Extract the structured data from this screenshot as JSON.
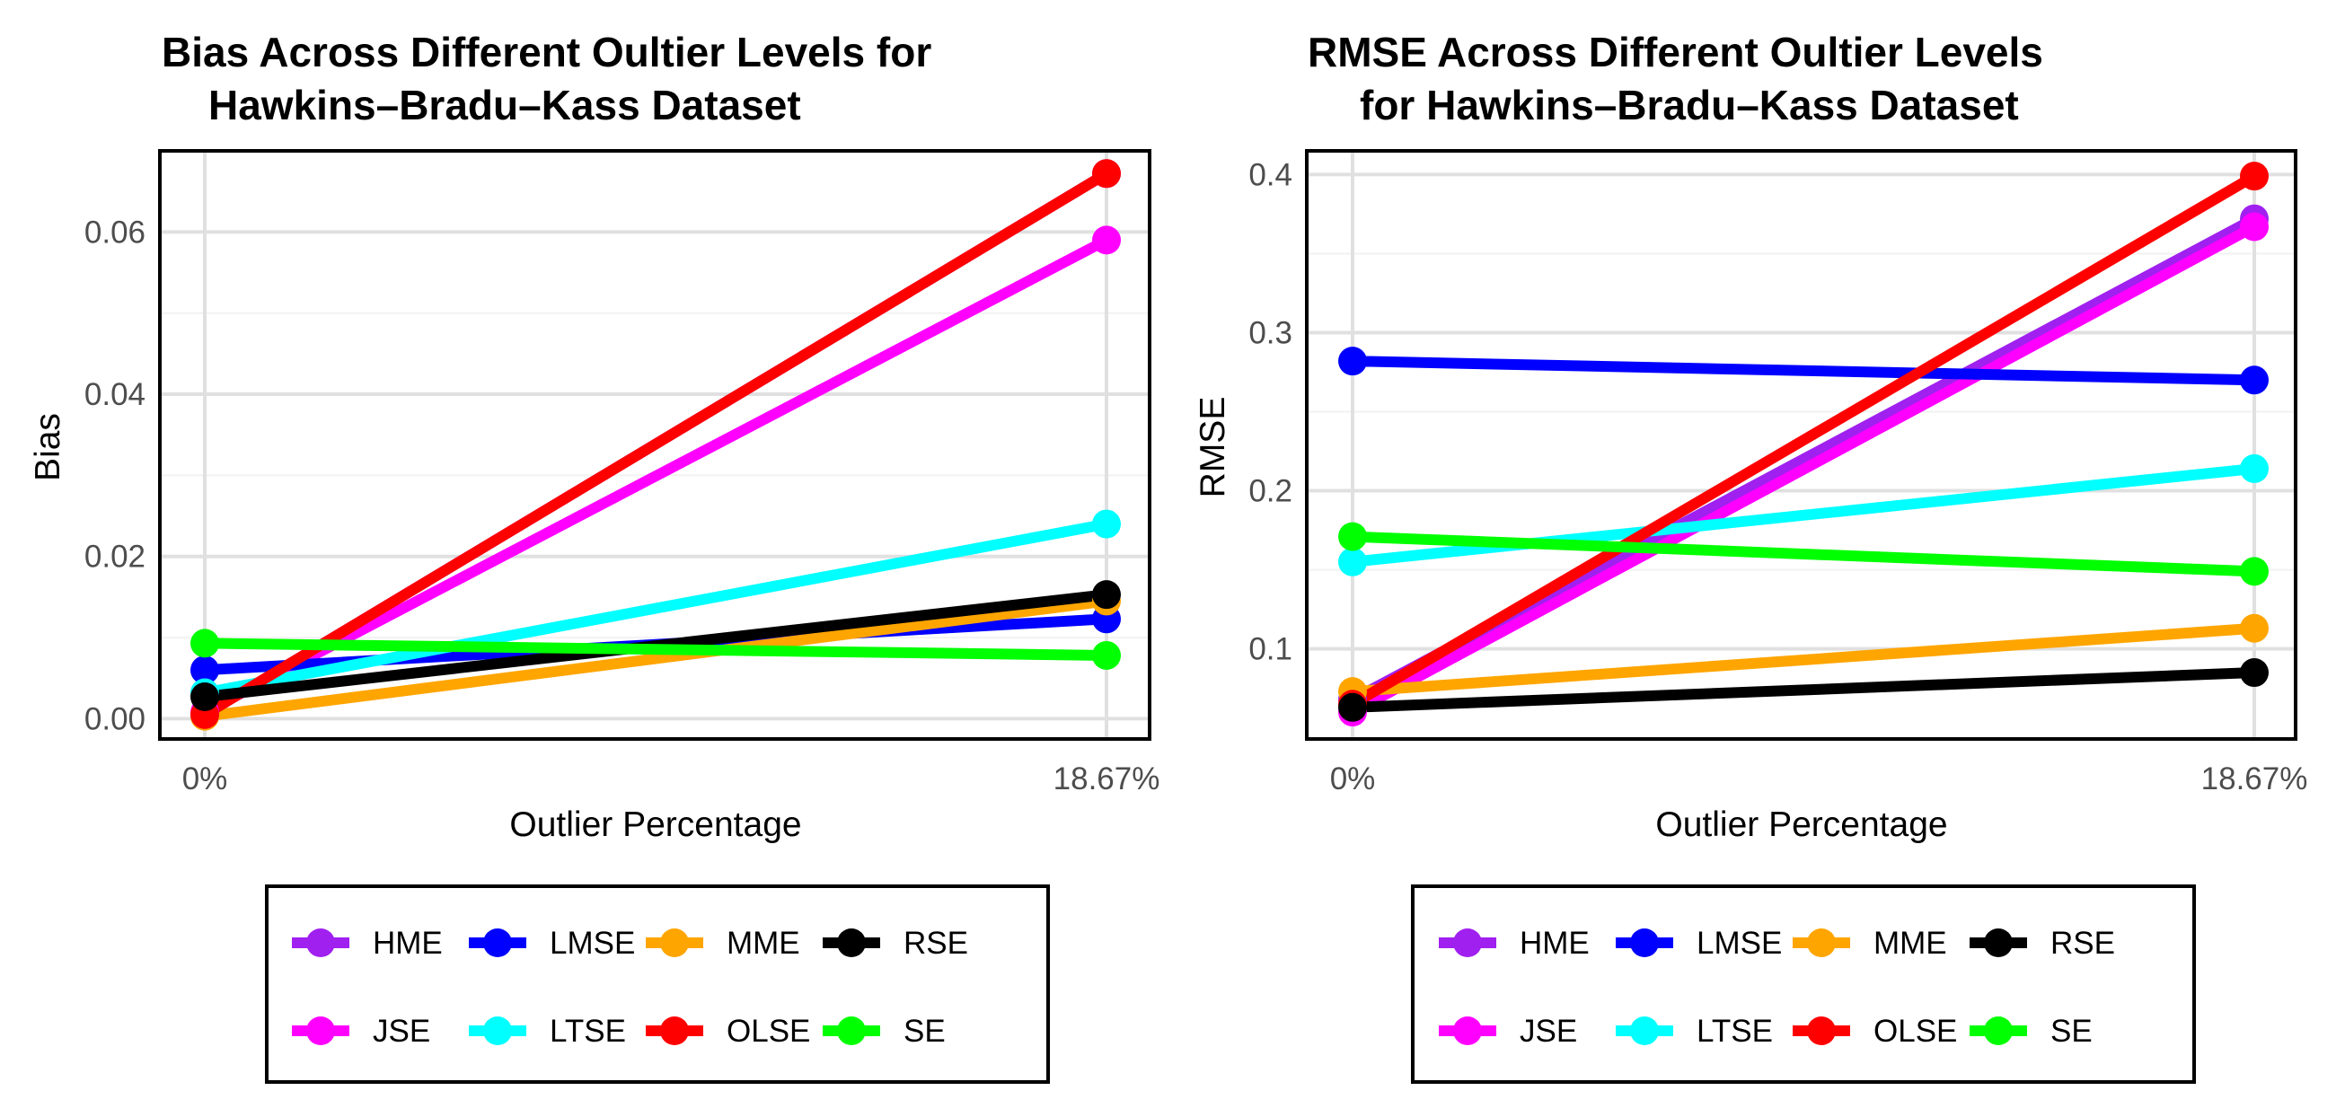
{
  "chart_data": [
    {
      "type": "line",
      "title_line1": "Bias Across Different Oultier Levels for",
      "title_line2": "Hawkins–Bradu–Kass Dataset",
      "xlabel": "Outlier Percentage",
      "ylabel": "Bias",
      "categories": [
        "0%",
        "18.67%"
      ],
      "ylim": [
        -0.0025,
        0.07
      ],
      "yticks": [
        0.0,
        0.02,
        0.04,
        0.06
      ],
      "ytick_labels": [
        "0.00",
        "0.02",
        "0.04",
        "0.06"
      ],
      "grid": true,
      "legend_position": "bottom",
      "series": [
        {
          "name": "HME",
          "color": "#a020f0",
          "values": [
            0.0005,
            0.0672
          ]
        },
        {
          "name": "JSE",
          "color": "#ff00ff",
          "values": [
            0.0008,
            0.059
          ]
        },
        {
          "name": "LMSE",
          "color": "#0000ff",
          "values": [
            0.006,
            0.0123
          ]
        },
        {
          "name": "LTSE",
          "color": "#00ffff",
          "values": [
            0.0032,
            0.024
          ]
        },
        {
          "name": "MME",
          "color": "#ffa500",
          "values": [
            0.0003,
            0.0145
          ]
        },
        {
          "name": "OLSE",
          "color": "#ff0000",
          "values": [
            0.0005,
            0.0672
          ]
        },
        {
          "name": "RSE",
          "color": "#000000",
          "values": [
            0.0027,
            0.0153
          ]
        },
        {
          "name": "SE",
          "color": "#00ff00",
          "values": [
            0.0093,
            0.0078
          ]
        }
      ]
    },
    {
      "type": "line",
      "title_line1": "RMSE Across Different Oultier Levels",
      "title_line2": "for Hawkins–Bradu–Kass Dataset",
      "xlabel": "Outlier Percentage",
      "ylabel": "RMSE",
      "categories": [
        "0%",
        "18.67%"
      ],
      "ylim": [
        0.043,
        0.415
      ],
      "yticks": [
        0.1,
        0.2,
        0.3,
        0.4
      ],
      "ytick_labels": [
        "0.1",
        "0.2",
        "0.3",
        "0.4"
      ],
      "grid": true,
      "legend_position": "bottom",
      "series": [
        {
          "name": "HME",
          "color": "#a020f0",
          "values": [
            0.068,
            0.372
          ]
        },
        {
          "name": "JSE",
          "color": "#ff00ff",
          "values": [
            0.06,
            0.367
          ]
        },
        {
          "name": "LMSE",
          "color": "#0000ff",
          "values": [
            0.282,
            0.27
          ]
        },
        {
          "name": "LTSE",
          "color": "#00ffff",
          "values": [
            0.155,
            0.214
          ]
        },
        {
          "name": "MME",
          "color": "#ffa500",
          "values": [
            0.073,
            0.113
          ]
        },
        {
          "name": "OLSE",
          "color": "#ff0000",
          "values": [
            0.065,
            0.399
          ]
        },
        {
          "name": "RSE",
          "color": "#000000",
          "values": [
            0.063,
            0.085
          ]
        },
        {
          "name": "SE",
          "color": "#00ff00",
          "values": [
            0.171,
            0.149
          ]
        }
      ]
    }
  ],
  "legend": {
    "rows": [
      [
        "HME",
        "LMSE",
        "MME",
        "RSE"
      ],
      [
        "JSE",
        "LTSE",
        "OLSE",
        "SE"
      ]
    ]
  }
}
